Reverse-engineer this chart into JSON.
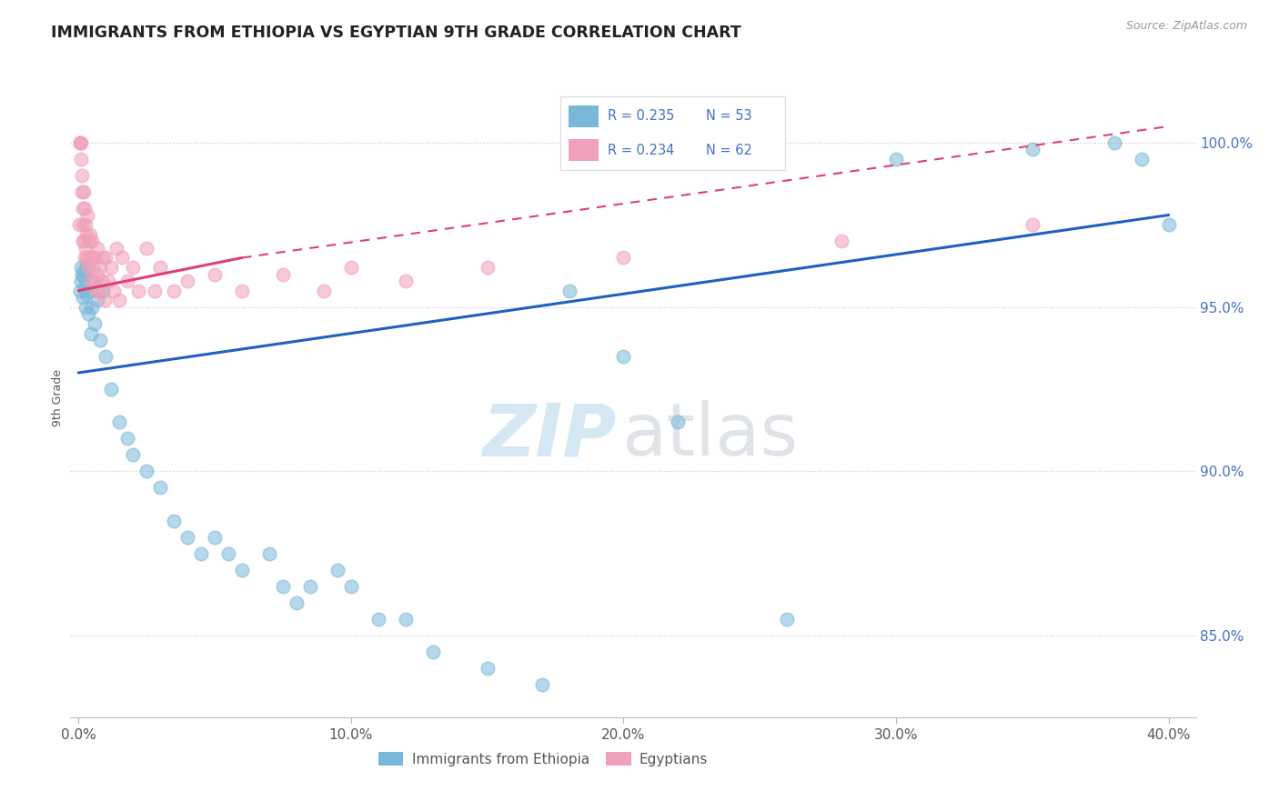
{
  "title": "IMMIGRANTS FROM ETHIOPIA VS EGYPTIAN 9TH GRADE CORRELATION CHART",
  "source": "Source: ZipAtlas.com",
  "xlim": [
    -0.3,
    41.0
  ],
  "ylim": [
    82.5,
    102.0
  ],
  "xticks": [
    0,
    10,
    20,
    30,
    40
  ],
  "xticklabels": [
    "0.0%",
    "10.0%",
    "20.0%",
    "30.0%",
    "40.0%"
  ],
  "yticks": [
    85,
    90,
    95,
    100
  ],
  "yticklabels": [
    "85.0%",
    "90.0%",
    "95.0%",
    "100.0%"
  ],
  "blue_color": "#7ab8d9",
  "pink_color": "#f0a0b8",
  "trend_blue_color": "#2060c0",
  "trend_pink_color": "#e04070",
  "legend_label_blue": "Immigrants from Ethiopia",
  "legend_label_pink": "Egyptians",
  "legend_r_blue": "R = 0.235",
  "legend_n_blue": "N = 53",
  "legend_r_pink": "R = 0.234",
  "legend_n_pink": "N = 62",
  "blue_x": [
    0.05,
    0.08,
    0.1,
    0.13,
    0.15,
    0.18,
    0.2,
    0.23,
    0.25,
    0.28,
    0.3,
    0.35,
    0.4,
    0.45,
    0.5,
    0.55,
    0.6,
    0.7,
    0.8,
    0.9,
    1.0,
    1.2,
    1.5,
    1.8,
    2.0,
    2.5,
    3.0,
    3.5,
    4.0,
    4.5,
    5.0,
    5.5,
    6.0,
    7.0,
    7.5,
    8.0,
    8.5,
    9.5,
    10.0,
    11.0,
    12.0,
    13.0,
    15.0,
    17.0,
    18.0,
    20.0,
    22.0,
    26.0,
    30.0,
    35.0,
    38.0,
    39.0,
    40.0
  ],
  "blue_y": [
    95.5,
    96.2,
    95.8,
    96.0,
    95.3,
    95.9,
    96.1,
    95.6,
    95.0,
    96.3,
    95.4,
    94.8,
    95.5,
    94.2,
    95.0,
    95.8,
    94.5,
    95.2,
    94.0,
    95.5,
    93.5,
    92.5,
    91.5,
    91.0,
    90.5,
    90.0,
    89.5,
    88.5,
    88.0,
    87.5,
    88.0,
    87.5,
    87.0,
    87.5,
    86.5,
    86.0,
    86.5,
    87.0,
    86.5,
    85.5,
    85.5,
    84.5,
    84.0,
    83.5,
    95.5,
    93.5,
    91.5,
    85.5,
    99.5,
    99.8,
    100.0,
    99.5,
    97.5
  ],
  "pink_x": [
    0.03,
    0.05,
    0.06,
    0.08,
    0.1,
    0.11,
    0.12,
    0.14,
    0.15,
    0.16,
    0.18,
    0.2,
    0.22,
    0.23,
    0.25,
    0.27,
    0.28,
    0.3,
    0.32,
    0.35,
    0.38,
    0.4,
    0.42,
    0.45,
    0.48,
    0.5,
    0.52,
    0.55,
    0.6,
    0.65,
    0.68,
    0.7,
    0.75,
    0.8,
    0.85,
    0.9,
    0.95,
    1.0,
    1.1,
    1.2,
    1.3,
    1.4,
    1.5,
    1.6,
    1.8,
    2.0,
    2.2,
    2.5,
    2.8,
    3.0,
    3.5,
    4.0,
    5.0,
    6.0,
    7.5,
    9.0,
    10.0,
    12.0,
    15.0,
    20.0,
    28.0,
    35.0
  ],
  "pink_y": [
    97.5,
    100.0,
    100.0,
    100.0,
    99.5,
    99.0,
    98.5,
    98.0,
    97.5,
    97.0,
    98.5,
    97.0,
    98.0,
    96.5,
    97.5,
    96.8,
    97.2,
    96.5,
    97.8,
    96.2,
    97.0,
    96.5,
    97.2,
    95.8,
    96.5,
    97.0,
    96.2,
    95.8,
    96.5,
    95.5,
    96.8,
    96.0,
    95.5,
    96.2,
    95.8,
    96.5,
    95.2,
    96.5,
    95.8,
    96.2,
    95.5,
    96.8,
    95.2,
    96.5,
    95.8,
    96.2,
    95.5,
    96.8,
    95.5,
    96.2,
    95.5,
    95.8,
    96.0,
    95.5,
    96.0,
    95.5,
    96.2,
    95.8,
    96.2,
    96.5,
    97.0,
    97.5
  ],
  "blue_trend_x0": 0.0,
  "blue_trend_y0": 93.0,
  "blue_trend_x1": 40.0,
  "blue_trend_y1": 97.8,
  "pink_solid_x0": 0.0,
  "pink_solid_y0": 95.5,
  "pink_solid_x1": 6.0,
  "pink_solid_y1": 96.5,
  "pink_dash_x0": 6.0,
  "pink_dash_y0": 96.5,
  "pink_dash_x1": 40.0,
  "pink_dash_y1": 100.5
}
